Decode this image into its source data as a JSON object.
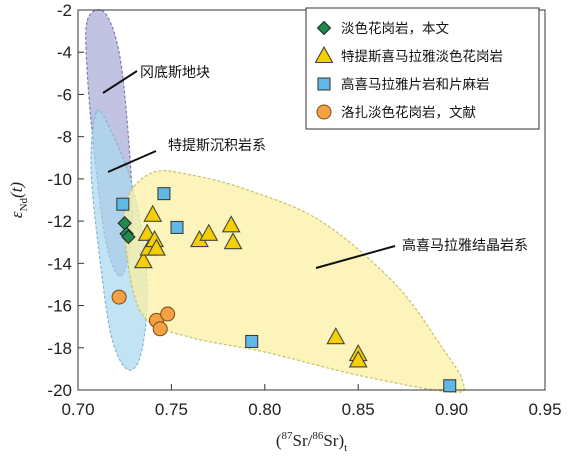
{
  "chart_data": {
    "type": "scatter",
    "xlabel": {
      "pre": "(",
      "sup1": "87",
      "mid": "Sr/",
      "sup2": "86",
      "post": "Sr)",
      "sub": "t"
    },
    "ylabel": {
      "main": "ε",
      "sub": "Nd",
      "post": "(t)"
    },
    "xlim": [
      0.7,
      0.95
    ],
    "ylim": [
      -20,
      -2
    ],
    "xticks": [
      "0.70",
      "0.75",
      "0.80",
      "0.85",
      "0.90",
      "0.95"
    ],
    "yticks": [
      "-2",
      "-4",
      "-6",
      "-8",
      "-10",
      "-12",
      "-14",
      "-16",
      "-18",
      "-20"
    ],
    "grid": false,
    "legend_position": "top-right",
    "series": [
      {
        "name": "淡色花岗岩，本文",
        "marker": "diamond",
        "color": "#1f8a4c",
        "points": [
          [
            0.725,
            -12.1
          ],
          [
            0.726,
            -12.6
          ],
          [
            0.727,
            -12.75
          ]
        ]
      },
      {
        "name": "特提斯喜马拉雅淡色花岗岩",
        "marker": "triangle",
        "color": "#f5d000",
        "points": [
          [
            0.735,
            -13.9
          ],
          [
            0.737,
            -12.6
          ],
          [
            0.738,
            -13.3
          ],
          [
            0.74,
            -11.7
          ],
          [
            0.741,
            -12.9
          ],
          [
            0.742,
            -13.3
          ],
          [
            0.765,
            -12.9
          ],
          [
            0.77,
            -12.6
          ],
          [
            0.782,
            -12.2
          ],
          [
            0.783,
            -13.0
          ],
          [
            0.838,
            -17.5
          ],
          [
            0.85,
            -18.3
          ],
          [
            0.85,
            -18.6
          ]
        ]
      },
      {
        "name": "高喜马拉雅片岩和片麻岩",
        "marker": "square",
        "color": "#5fb8e6",
        "points": [
          [
            0.724,
            -11.2
          ],
          [
            0.746,
            -10.7
          ],
          [
            0.753,
            -12.3
          ],
          [
            0.793,
            -17.7
          ],
          [
            0.899,
            -19.8
          ]
        ]
      },
      {
        "name": "洛扎淡色花岗岩，文献",
        "marker": "circle",
        "color": "#f5a045",
        "points": [
          [
            0.722,
            -15.6
          ],
          [
            0.742,
            -16.7
          ],
          [
            0.744,
            -17.1
          ],
          [
            0.748,
            -16.4
          ]
        ]
      }
    ],
    "regions": [
      {
        "label": "冈底斯地块",
        "fill": "#aaaad8",
        "stroke": "#7a7ab8",
        "polygon": [
          [
            0.705,
            -2.5
          ],
          [
            0.714,
            -2.1
          ],
          [
            0.722,
            -4.0
          ],
          [
            0.727,
            -8.0
          ],
          [
            0.729,
            -11.5
          ],
          [
            0.727,
            -13.7
          ],
          [
            0.722,
            -14.6
          ],
          [
            0.715,
            -13.0
          ],
          [
            0.709,
            -9.0
          ],
          [
            0.705,
            -5.0
          ]
        ]
      },
      {
        "label": "特提斯沉积岩系",
        "fill": "#a9d8ee",
        "stroke": "#7ab8d8",
        "polygon": [
          [
            0.71,
            -6.8
          ],
          [
            0.718,
            -7.8
          ],
          [
            0.728,
            -10.0
          ],
          [
            0.735,
            -13.0
          ],
          [
            0.737,
            -16.0
          ],
          [
            0.733,
            -18.5
          ],
          [
            0.726,
            -19.0
          ],
          [
            0.718,
            -17.5
          ],
          [
            0.712,
            -14.0
          ],
          [
            0.707,
            -9.5
          ]
        ]
      },
      {
        "label": "高喜马拉雅结晶岩系",
        "fill": "#fbf0a0",
        "stroke": "#c9c06a",
        "polygon": [
          [
            0.726,
            -11.0
          ],
          [
            0.74,
            -9.7
          ],
          [
            0.76,
            -9.8
          ],
          [
            0.79,
            -10.5
          ],
          [
            0.83,
            -12.0
          ],
          [
            0.87,
            -15.0
          ],
          [
            0.895,
            -18.0
          ],
          [
            0.906,
            -19.6
          ],
          [
            0.9,
            -20.1
          ],
          [
            0.85,
            -19.3
          ],
          [
            0.8,
            -18.2
          ],
          [
            0.76,
            -17.5
          ],
          [
            0.735,
            -16.5
          ],
          [
            0.726,
            -13.5
          ]
        ]
      }
    ]
  }
}
